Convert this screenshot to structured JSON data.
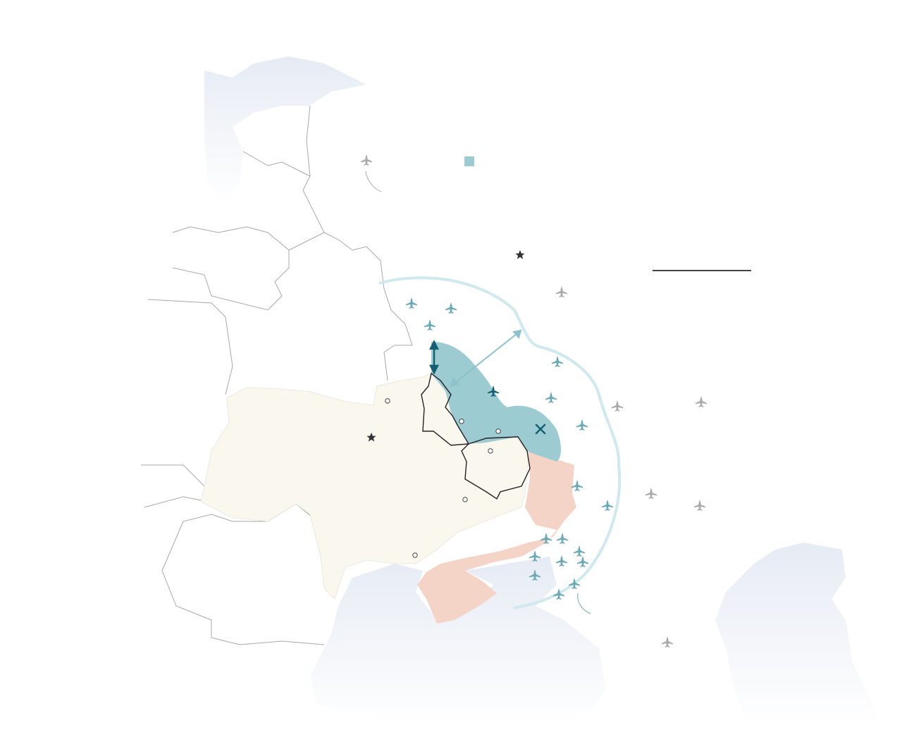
{
  "map": {
    "colors": {
      "ukraine_controlled": "#faf7ef",
      "occupied": "#f5d4c8",
      "buffer_zone": "#9ccbd2",
      "strike_range_ring": "#cfe9ee",
      "airbase_in_range": "#6aa9b4",
      "airbase_out_of_range": "#aaaaaa",
      "airbase_in_zone": "#135f73",
      "sea": "#eef2f8",
      "border": "#a8a8a8",
      "region_outline": "#222222",
      "capital_star": "#333333"
    },
    "icons": {
      "airbase": "plane-icon",
      "capital": "star-icon",
      "city": "circle-icon",
      "mine": "pickaxes-icon",
      "depth_arrow": "double-arrow-icon",
      "legend_swatch": "square-icon",
      "scale": "scale-bar"
    }
  }
}
